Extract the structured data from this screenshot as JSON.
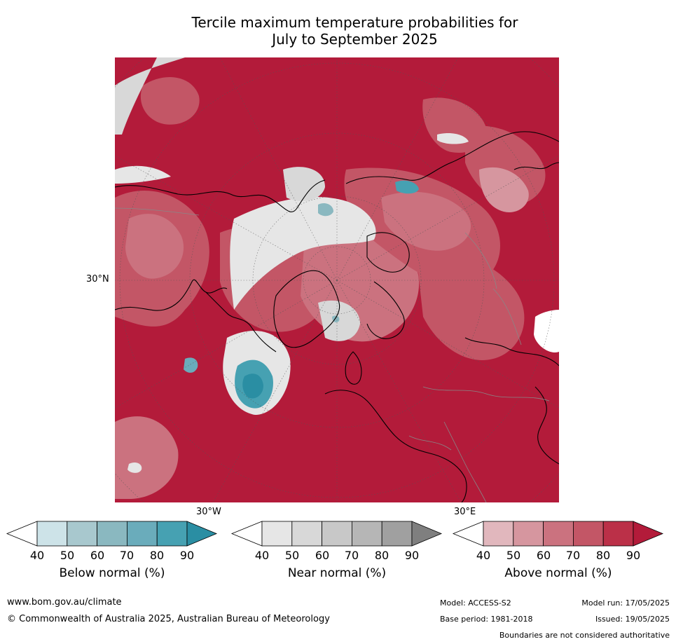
{
  "title": {
    "line1": "Tercile maximum temperature probabilities for",
    "line2": "July to September 2025"
  },
  "map": {
    "lat_label": "30°N",
    "lon_label_west": "30°W",
    "lon_label_east": "30°E"
  },
  "colorbars": [
    {
      "label": "Below normal (%)",
      "ticks": [
        "40",
        "50",
        "60",
        "70",
        "80",
        "90"
      ],
      "colors": [
        "#ffffff",
        "#cde3e8",
        "#a8c8ce",
        "#8ab8c0",
        "#6aacbb",
        "#46a1b2",
        "#2a8ea3"
      ]
    },
    {
      "label": "Near normal (%)",
      "ticks": [
        "40",
        "50",
        "60",
        "70",
        "80",
        "90"
      ],
      "colors": [
        "#ffffff",
        "#e6e6e6",
        "#d8d8d8",
        "#c8c8c8",
        "#b6b6b6",
        "#a0a0a0",
        "#7f7f7f"
      ]
    },
    {
      "label": "Above normal (%)",
      "ticks": [
        "40",
        "50",
        "60",
        "70",
        "80",
        "90"
      ],
      "colors": [
        "#ffffff",
        "#e1b7bd",
        "#d6969f",
        "#cb727f",
        "#c35666",
        "#bb3048",
        "#b31b3a"
      ]
    }
  ],
  "footer": {
    "website": "www.bom.gov.au/climate",
    "copyright": "© Commonwealth of Australia 2025, Australian Bureau of Meteorology",
    "model": "Model: ACCESS-S2",
    "base_period": "Base period: 1981-2018",
    "model_run": "Model run: 17/05/2025",
    "issued": "Issued: 19/05/2025",
    "disclaimer": "Boundaries are not considered authoritative"
  }
}
